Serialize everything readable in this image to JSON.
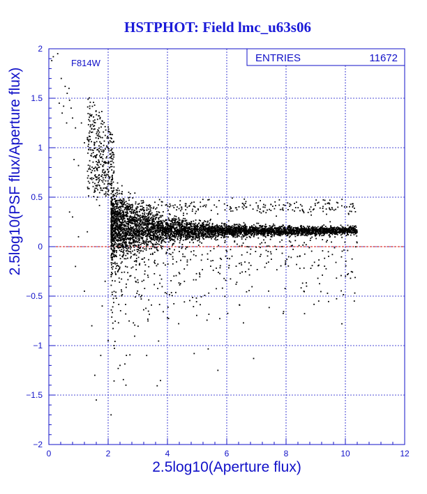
{
  "chart_data": {
    "type": "scatter",
    "title": "HSTPHOT: Field lmc_u63s06",
    "xlabel": "2.5log10(Aperture flux)",
    "ylabel": "2.5log10(PSF flux/Aperture flux)",
    "xlim": [
      0,
      12
    ],
    "ylim": [
      -2,
      2
    ],
    "xticks": [
      0,
      2,
      4,
      6,
      8,
      10,
      12
    ],
    "yticks": [
      -2,
      -1.5,
      -1,
      -0.5,
      0,
      0.5,
      1,
      1.5,
      2
    ],
    "xtick_labels": [
      "0",
      "2",
      "4",
      "6",
      "8",
      "10",
      "12"
    ],
    "ytick_labels": [
      "−2",
      "−1.5",
      "−1",
      "−0.5",
      "0",
      "0.5",
      "1",
      "1.5",
      "2"
    ],
    "grid": true,
    "filter_label": "F814W",
    "entries_label": "ENTRIES",
    "entries_value": "11672",
    "reference_line_y": 0,
    "colors": {
      "axis": "#1010c8",
      "title": "#1a1ad8",
      "ref_line": "#cc0000",
      "points": "#000000"
    },
    "points": [
      [
        0.15,
        1.92
      ],
      [
        0.3,
        1.95
      ],
      [
        0.1,
        1.88
      ],
      [
        0.42,
        1.7
      ],
      [
        0.55,
        1.62
      ],
      [
        0.62,
        1.55
      ],
      [
        0.68,
        1.6
      ],
      [
        0.35,
        1.45
      ],
      [
        0.5,
        1.42
      ],
      [
        0.7,
        1.48
      ],
      [
        0.45,
        1.35
      ],
      [
        0.8,
        1.3
      ],
      [
        0.6,
        1.25
      ],
      [
        0.75,
        1.4
      ],
      [
        0.9,
        1.2
      ],
      [
        1.1,
        1.25
      ],
      [
        1.2,
        1.05
      ],
      [
        1.3,
        1.1
      ],
      [
        1.35,
        0.98
      ],
      [
        1.5,
        0.95
      ],
      [
        1.6,
        0.92
      ],
      [
        0.85,
        0.88
      ],
      [
        1.0,
        0.82
      ],
      [
        1.4,
        0.78
      ],
      [
        1.7,
        0.85
      ],
      [
        0.7,
        0.35
      ],
      [
        1.0,
        0.1
      ],
      [
        0.9,
        -0.2
      ],
      [
        1.2,
        -0.45
      ],
      [
        1.45,
        -0.8
      ],
      [
        1.55,
        -1.3
      ],
      [
        1.6,
        -1.55
      ],
      [
        2.1,
        -1.7
      ],
      [
        1.75,
        -1.1
      ],
      [
        2.0,
        -0.95
      ],
      [
        2.6,
        -1.4
      ],
      [
        2.4,
        -1.2
      ],
      [
        1.8,
        -0.6
      ],
      [
        0.8,
        0.3
      ],
      [
        4.0,
        -0.72
      ],
      [
        5.7,
        -1.25
      ],
      [
        9.1,
        -0.55
      ],
      [
        8.6,
        -0.45
      ],
      [
        10.3,
        -0.55
      ],
      [
        1.65,
        0.5
      ],
      [
        1.3,
        0.15
      ],
      [
        2.2,
        -1.0
      ],
      [
        1.9,
        -0.35
      ],
      [
        3.3,
        -1.1
      ],
      [
        4.9,
        -1.08
      ]
    ]
  }
}
